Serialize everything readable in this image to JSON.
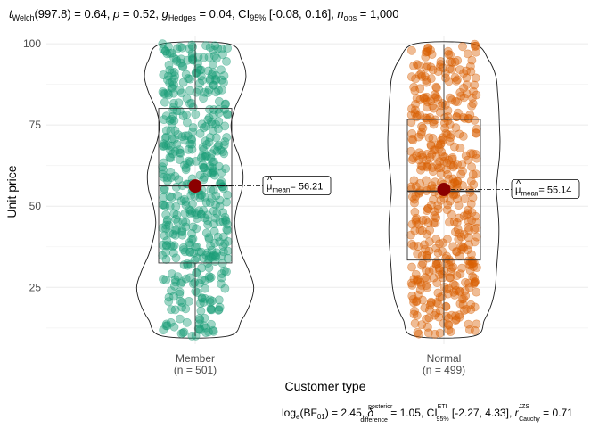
{
  "subtitle": {
    "t_sym": "t",
    "t_sub": "Welch",
    "t_val": "(997.8) = 0.64, ",
    "p_sym": "p",
    "p_val": " = 0.52, ",
    "g_sym": "g",
    "g_hat": "^",
    "g_sub": "Hedges",
    "g_val": " = 0.04, CI",
    "ci_sub": "95%",
    "ci_val": " [-0.08, 0.16], ",
    "n_sym": "n",
    "n_sub": "obs",
    "n_val": " = 1,000"
  },
  "caption": {
    "log_a": "log",
    "log_sub": "e",
    "log_b": "(BF",
    "bf_sub": "01",
    "log_c": ") = 2.45, ",
    "delta_sym": "δ",
    "delta_sup": "posterior",
    "delta_sub": "difference",
    "delta_val": " = 1.05, CI",
    "ci_sup": "ETI",
    "ci_sub": "95%",
    "ci_val": " [-2.27, 4.33], ",
    "r_sym": "r",
    "r_sup": "JZS",
    "r_sub": "Cauchy",
    "r_val": " = 0.71"
  },
  "chart_data": {
    "type": "violin-box-jitter",
    "xlabel": "Customer type",
    "ylabel": "Unit price",
    "ylim": [
      10,
      100
    ],
    "yticks": [
      25,
      50,
      75,
      100
    ],
    "grid": true,
    "groups": [
      {
        "name": "Member",
        "n_label": "(n = 501)",
        "n": 501,
        "color": "#1b9e77",
        "box": {
          "q1": 32.5,
          "median": 56.3,
          "q3": 80.1,
          "min": 10.0,
          "max": 100.0
        },
        "mean": 56.21,
        "mean_label": "= 56.21",
        "violin_width_profile": [
          [
            10,
            0.55
          ],
          [
            15,
            0.78
          ],
          [
            20,
            0.92
          ],
          [
            25,
            0.98
          ],
          [
            30,
            0.9
          ],
          [
            35,
            0.78
          ],
          [
            40,
            0.7
          ],
          [
            45,
            0.66
          ],
          [
            50,
            0.7
          ],
          [
            55,
            0.78
          ],
          [
            60,
            0.8
          ],
          [
            65,
            0.74
          ],
          [
            70,
            0.64
          ],
          [
            75,
            0.6
          ],
          [
            80,
            0.66
          ],
          [
            85,
            0.78
          ],
          [
            90,
            0.85
          ],
          [
            95,
            0.78
          ],
          [
            100,
            0.55
          ]
        ]
      },
      {
        "name": "Normal",
        "n_label": "(n = 499)",
        "n": 499,
        "color": "#d95f02",
        "box": {
          "q1": 33.4,
          "median": 54.6,
          "q3": 76.7,
          "min": 10.1,
          "max": 99.9
        },
        "mean": 55.14,
        "mean_label": "= 55.14",
        "violin_width_profile": [
          [
            10,
            0.5
          ],
          [
            15,
            0.68
          ],
          [
            20,
            0.8
          ],
          [
            25,
            0.86
          ],
          [
            30,
            0.88
          ],
          [
            35,
            0.9
          ],
          [
            40,
            0.92
          ],
          [
            45,
            0.92
          ],
          [
            50,
            0.9
          ],
          [
            55,
            0.88
          ],
          [
            60,
            0.9
          ],
          [
            65,
            0.93
          ],
          [
            70,
            0.94
          ],
          [
            75,
            0.93
          ],
          [
            80,
            0.92
          ],
          [
            85,
            0.9
          ],
          [
            90,
            0.87
          ],
          [
            95,
            0.75
          ],
          [
            100,
            0.48
          ]
        ]
      }
    ],
    "mean_marker_color": "#8b0000",
    "mean_symbol": "μ",
    "mean_symbol_sub": "mean"
  }
}
